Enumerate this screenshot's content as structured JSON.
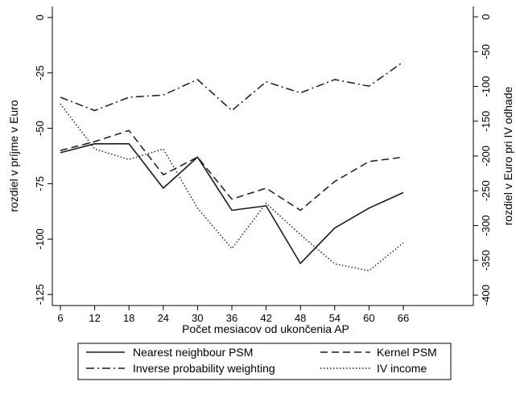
{
  "chart_data": {
    "type": "line",
    "x": [
      6,
      12,
      18,
      24,
      30,
      36,
      42,
      48,
      54,
      60,
      66
    ],
    "xlabel": "Počet mesiacov od ukončenia AP",
    "xticks": [
      "6",
      "12",
      "18",
      "24",
      "30",
      "36",
      "42",
      "48",
      "54",
      "60",
      "66"
    ],
    "ylabel_left": "rozdiel v príjme v Euro",
    "ylim_left": [
      -130,
      5
    ],
    "yticks_left": [
      0,
      -25,
      -50,
      -75,
      -100,
      -125
    ],
    "yticklabels_left": [
      "0",
      "-25",
      "-50",
      "-75",
      "-100",
      "-125"
    ],
    "ylabel_right": "rozdiel v Euro pri IV odhade",
    "ylim_right": [
      -415,
      15
    ],
    "yticks_right": [
      0,
      -50,
      -100,
      -150,
      -200,
      -250,
      -300,
      -350,
      -400
    ],
    "yticklabels_right": [
      "0",
      "-50",
      "-100",
      "-150",
      "-200",
      "-250",
      "-300",
      "-350",
      "-400"
    ],
    "grid": false,
    "legend_position": "bottom",
    "series": [
      {
        "name": "Nearest neighbour PSM",
        "axis": "left",
        "style": "solid",
        "values": [
          -61,
          -57,
          -57,
          -77,
          -63,
          -87,
          -85,
          -111,
          -95,
          -86,
          -79
        ]
      },
      {
        "name": "Kernel PSM",
        "axis": "left",
        "style": "dashed",
        "values": [
          -60,
          -56,
          -51,
          -71,
          -63,
          -82,
          -77,
          -87,
          -74,
          -65,
          -63
        ]
      },
      {
        "name": "Inverse probability weighting",
        "axis": "left",
        "style": "dashdot",
        "values": [
          -36,
          -42,
          -36,
          -35,
          -28,
          -42,
          -29,
          -34,
          -28,
          -31,
          -20
        ]
      },
      {
        "name": "IV income",
        "axis": "right",
        "style": "dotted",
        "values": [
          -125,
          -190,
          -205,
          -190,
          -275,
          -333,
          -268,
          -313,
          -355,
          -365,
          -325
        ]
      }
    ]
  }
}
